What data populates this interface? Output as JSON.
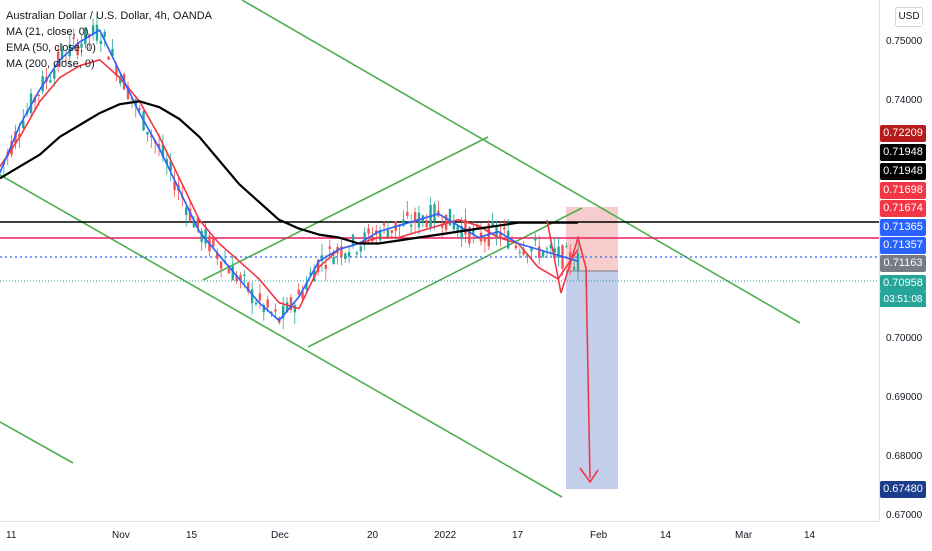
{
  "legend": {
    "symbol": "Australian Dollar / U.S. Dollar, 4h, OANDA",
    "ma21": "MA (21, close, 0)",
    "ema50": "EMA (50, close, 0)",
    "ma200": "MA (200, close, 0)"
  },
  "currency_button": "USD",
  "colors": {
    "green_channel": "#4caf50",
    "ma21": "#f23645",
    "ema50": "#2962ff",
    "ma200": "#000000",
    "up_candle": "#26a69a",
    "down_candle": "#ef5350",
    "short_target": "#9fb0d9",
    "short_stop": "#f3b4b4",
    "arrow": "#f23645"
  },
  "price_axis": {
    "ticks": [
      "0.75000",
      "0.74000",
      "0.70000",
      "0.69000",
      "0.68000",
      "0.67000"
    ]
  },
  "price_badges": [
    {
      "value": "0.72209",
      "color": "#b71c1c",
      "text_color": "#ffffff"
    },
    {
      "value": "0.71948",
      "color": "#000000",
      "text_color": "#ffffff"
    },
    {
      "value": "0.71948",
      "color": "#000000",
      "text_color": "#ffffff"
    },
    {
      "value": "0.71698",
      "color": "#f23645",
      "text_color": "#ffffff"
    },
    {
      "value": "0.71674",
      "color": "#f23645",
      "text_color": "#ffffff"
    },
    {
      "value": "0.71365",
      "color": "#2962ff",
      "text_color": "#ffffff"
    },
    {
      "value": "0.71357",
      "color": "#2962ff",
      "text_color": "#ffffff"
    },
    {
      "value": "0.71163",
      "color": "#787b86",
      "text_color": "#ffffff"
    },
    {
      "value": "0.70958",
      "color": "#26a69a",
      "text_color": "#ffffff"
    },
    {
      "value": "0.67480",
      "color": "#1c3c8c",
      "text_color": "#ffffff"
    }
  ],
  "countdown": "03:51:08",
  "time_axis": [
    "11",
    "Nov",
    "15",
    "Dec",
    "20",
    "2022",
    "17",
    "Feb",
    "14",
    "Mar",
    "14"
  ],
  "chart_data": {
    "type": "line",
    "title": "Australian Dollar / U.S. Dollar, 4h, OANDA",
    "ylabel": "USD",
    "ylim": [
      0.67,
      0.755
    ],
    "x_labels": [
      "11",
      "Nov",
      "15",
      "Dec",
      "20",
      "2022",
      "17",
      "Feb",
      "14",
      "Mar",
      "14"
    ],
    "horizontal_levels": {
      "black_resistance": 0.7195,
      "red_level": 0.717,
      "blue_dotted": 0.71163,
      "green_dotted_last": 0.70958
    },
    "short_position": {
      "entry": 0.71163,
      "stop": 0.7221,
      "target": 0.6748
    },
    "series": [
      {
        "name": "MA (21, close, 0)",
        "values": [
          0.729,
          0.734,
          0.74,
          0.744,
          0.746,
          0.747,
          0.744,
          0.74,
          0.734,
          0.727,
          0.72,
          0.716,
          0.713,
          0.71,
          0.706,
          0.705,
          0.712,
          0.715,
          0.716,
          0.717,
          0.717,
          0.718,
          0.719,
          0.72,
          0.719,
          0.717,
          0.716,
          0.712,
          0.71,
          0.715
        ]
      },
      {
        "name": "EMA (50, close, 0)",
        "values": [
          0.728,
          0.736,
          0.742,
          0.747,
          0.75,
          0.752,
          0.745,
          0.738,
          0.732,
          0.725,
          0.718,
          0.714,
          0.71,
          0.706,
          0.703,
          0.707,
          0.713,
          0.715,
          0.716,
          0.718,
          0.719,
          0.72,
          0.721,
          0.719,
          0.717,
          0.718,
          0.716,
          0.715,
          0.714,
          0.713
        ]
      },
      {
        "name": "MA (200, close, 0)",
        "values": [
          0.727,
          0.729,
          0.731,
          0.734,
          0.736,
          0.738,
          0.7395,
          0.74,
          0.739,
          0.737,
          0.734,
          0.73,
          0.726,
          0.723,
          0.72,
          0.7185,
          0.7175,
          0.717,
          0.716,
          0.716,
          0.7165,
          0.717,
          0.7175,
          0.718,
          0.7185,
          0.719,
          0.7195,
          0.7195,
          0.7195,
          0.7195
        ]
      }
    ]
  }
}
